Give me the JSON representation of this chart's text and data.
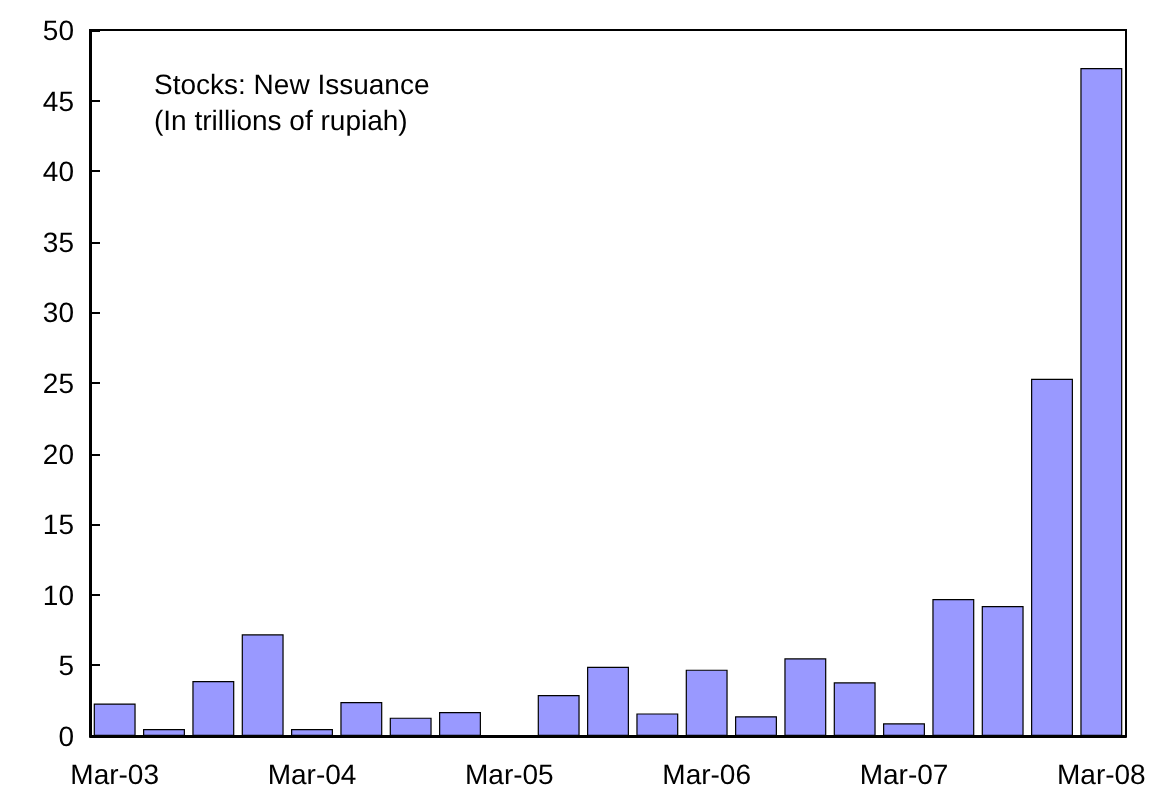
{
  "chart_data": {
    "type": "bar",
    "title": "Stocks: New Issuance",
    "subtitle": "(In trillions of rupiah)",
    "categories": [
      "Mar-03",
      null,
      null,
      null,
      "Mar-04",
      null,
      null,
      null,
      "Mar-05",
      null,
      null,
      null,
      "Mar-06",
      null,
      null,
      null,
      "Mar-07",
      null,
      null,
      null,
      "Mar-08"
    ],
    "values": [
      2.3,
      0.5,
      3.9,
      7.2,
      0.5,
      2.4,
      1.3,
      1.7,
      0,
      2.9,
      4.9,
      1.6,
      4.7,
      1.4,
      5.5,
      3.8,
      0.9,
      9.7,
      9.2,
      25.3,
      47.3
    ],
    "color": "#9999ff",
    "ylim": [
      0,
      50
    ],
    "yticks": [
      0,
      5,
      10,
      15,
      20,
      25,
      30,
      35,
      40,
      45,
      50
    ],
    "grid": false
  }
}
